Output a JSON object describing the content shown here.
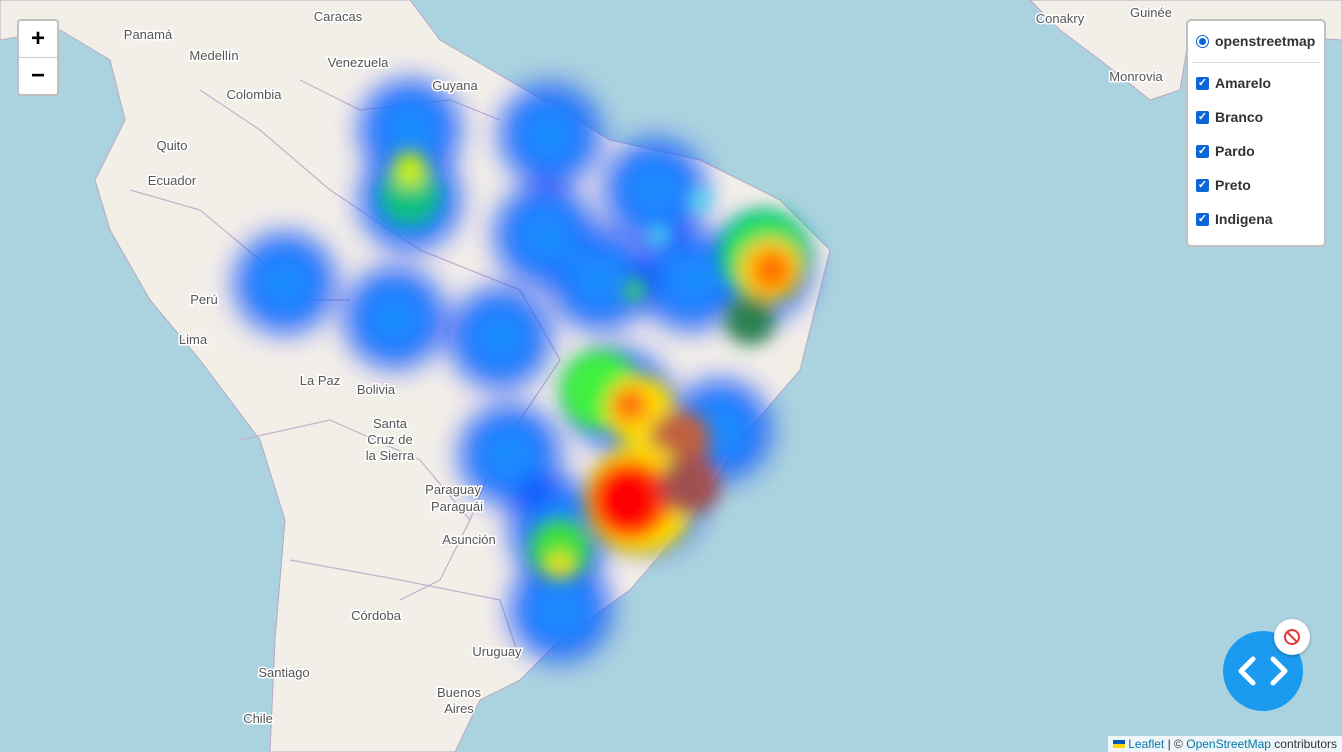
{
  "zoom_controls": {
    "zoom_in": "+",
    "zoom_out": "−"
  },
  "layer_control": {
    "base_layers": [
      "openstreetmap"
    ],
    "overlays": [
      "Amarelo",
      "Branco",
      "Pardo",
      "Preto",
      "Indigena"
    ]
  },
  "map_labels": [
    {
      "lines": [
        "Panamá"
      ]
    },
    {
      "lines": [
        "Caracas"
      ]
    },
    {
      "lines": [
        "Medellín"
      ]
    },
    {
      "lines": [
        "Venezuela"
      ]
    },
    {
      "lines": [
        "Colombia"
      ]
    },
    {
      "lines": [
        "Guyana"
      ]
    },
    {
      "lines": [
        "Quito"
      ]
    },
    {
      "lines": [
        "Ecuador"
      ]
    },
    {
      "lines": [
        "Perú"
      ]
    },
    {
      "lines": [
        "Lima"
      ]
    },
    {
      "lines": [
        "La Paz"
      ]
    },
    {
      "lines": [
        "Bolivia"
      ]
    },
    {
      "lines": [
        "Santa",
        "Cruz de",
        "la Sierra"
      ]
    },
    {
      "lines": [
        "Paraguay"
      ]
    },
    {
      "lines": [
        "Paraguái"
      ]
    },
    {
      "lines": [
        "Asunción"
      ]
    },
    {
      "lines": [
        "Córdoba"
      ]
    },
    {
      "lines": [
        "Uruguay"
      ]
    },
    {
      "lines": [
        "Santiago"
      ]
    },
    {
      "lines": [
        "Buenos",
        "Aires"
      ]
    },
    {
      "lines": [
        "Chile"
      ]
    },
    {
      "lines": [
        "Conakry"
      ]
    },
    {
      "lines": [
        "Guinée"
      ]
    },
    {
      "lines": [
        "Monrovia"
      ]
    }
  ],
  "attribution": {
    "leaflet": "Leaflet",
    "separator": "| ©",
    "osm": "OpenStreetMap",
    "suffix": "contributors"
  }
}
